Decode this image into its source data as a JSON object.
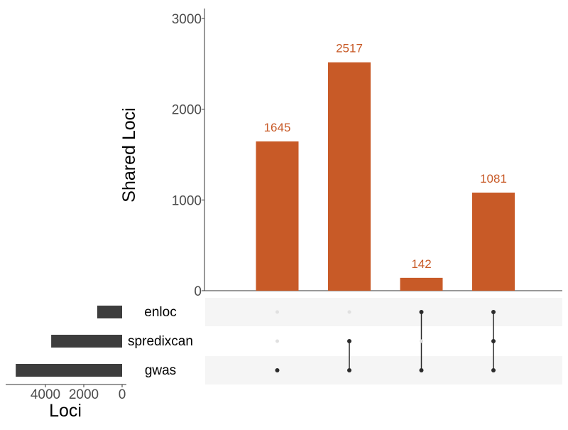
{
  "chart_data": {
    "type": "bar",
    "subtype": "upset",
    "ylabel": "Shared Loci",
    "ylim": [
      0,
      3000
    ],
    "yticks": [
      "0",
      "1000",
      "2000",
      "3000"
    ],
    "bar_color": "#c85a27",
    "bar_label_color": "#c85a27",
    "intersections": [
      {
        "value": 1645,
        "label": "1645",
        "members": [
          "gwas"
        ]
      },
      {
        "value": 2517,
        "label": "2517",
        "members": [
          "spredixcan",
          "gwas"
        ]
      },
      {
        "value": 142,
        "label": "142",
        "members": [
          "enloc",
          "gwas"
        ]
      },
      {
        "value": 1081,
        "label": "1081",
        "members": [
          "enloc",
          "spredixcan",
          "gwas"
        ]
      }
    ],
    "sets": [
      {
        "name": "enloc",
        "size": 1300
      },
      {
        "name": "spredixcan",
        "size": 3700
      },
      {
        "name": "gwas",
        "size": 5550
      }
    ],
    "set_size_axis": {
      "xlabel": "Loci",
      "reversed": true,
      "ticks": [
        "4000",
        "2000",
        "0"
      ],
      "color": "#3d3d3d"
    },
    "matrix": {
      "active_color": "#2b2b2b",
      "inactive_color": "#e0e0e0",
      "stripe_color": "#f5f5f5"
    }
  }
}
